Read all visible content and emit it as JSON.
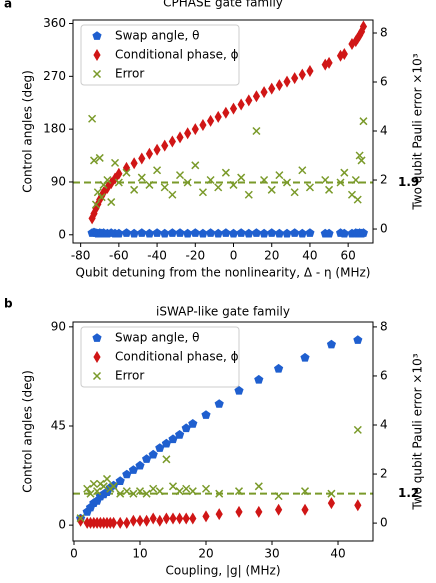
{
  "chart_data": [
    {
      "type": "scatter",
      "panel": "a",
      "title": "CPHASE gate family",
      "xlabel": "Qubit detuning from the nonlinearity, Δ - η (MHz)",
      "ylabel": "Control angles (deg)",
      "y2label": "Two qubit Pauli error ×10³",
      "x": [
        -74,
        -73,
        -72,
        -71,
        -70,
        -69,
        -68,
        -66,
        -64,
        -62,
        -60,
        -56,
        -52,
        -48,
        -44,
        -40,
        -36,
        -32,
        -28,
        -24,
        -20,
        -16,
        -12,
        -8,
        -4,
        0,
        4,
        8,
        12,
        16,
        20,
        24,
        28,
        32,
        36,
        40,
        48,
        50,
        56,
        58,
        62,
        64,
        65,
        66,
        67,
        68
      ],
      "series": [
        {
          "name": "Swap angle, θ",
          "color": "#1f5fcf",
          "marker": "pentagon",
          "values": [
            3,
            4,
            3,
            2,
            3,
            2,
            3,
            2,
            3,
            2,
            2,
            3,
            2,
            3,
            2,
            3,
            2,
            3,
            3,
            2,
            3,
            2,
            3,
            2,
            3,
            2,
            3,
            2,
            3,
            2,
            3,
            2,
            2,
            3,
            2,
            3,
            2,
            2,
            3,
            2,
            2,
            3,
            2,
            3,
            2,
            3
          ]
        },
        {
          "name": "Conditional phase, ϕ",
          "color": "#d01616",
          "marker": "diamond",
          "values": [
            28,
            36,
            45,
            52,
            60,
            66,
            72,
            80,
            88,
            96,
            104,
            114,
            122,
            130,
            138,
            145,
            152,
            159,
            166,
            173,
            180,
            187,
            194,
            201,
            208,
            215,
            222,
            229,
            236,
            243,
            249,
            255,
            261,
            267,
            273,
            279,
            290,
            293,
            305,
            308,
            325,
            330,
            335,
            340,
            346,
            355
          ]
        },
        {
          "name": "Error",
          "color": "#7a9a2a",
          "marker": "x",
          "axis": "y2",
          "values": [
            4.5,
            2.8,
            1.0,
            1.5,
            2.9,
            1.3,
            1.8,
            2.0,
            1.1,
            2.7,
            1.9,
            2.3,
            1.6,
            2.1,
            1.8,
            2.4,
            1.7,
            1.4,
            2.2,
            1.9,
            2.6,
            1.5,
            2.0,
            1.7,
            2.3,
            1.8,
            2.1,
            1.4,
            4.0,
            2.0,
            1.6,
            2.2,
            1.9,
            1.5,
            2.4,
            1.7,
            2.0,
            1.6,
            1.9,
            2.3,
            1.4,
            2.0,
            1.2,
            3.0,
            2.8,
            4.4
          ]
        }
      ],
      "threshold": 1.9,
      "xlim": [
        -84,
        73
      ],
      "ylim": [
        -14,
        366
      ],
      "y2lim": [
        -0.57,
        8.53
      ],
      "xticks": [
        -80,
        -60,
        -40,
        -20,
        0,
        20,
        40,
        60
      ],
      "yticks": [
        0,
        90,
        180,
        270,
        360
      ],
      "y2ticks": [
        0,
        2,
        4,
        6,
        8
      ],
      "legend": "upper left"
    },
    {
      "type": "scatter",
      "panel": "b",
      "title": "iSWAP-like gate family",
      "xlabel": "Coupling, |g| (MHz)",
      "ylabel": "Control angles (deg)",
      "y2label": "Two qubit Pauli error ×10³",
      "x": [
        1,
        2,
        2.5,
        3,
        3.5,
        4,
        4.5,
        5,
        5.5,
        6,
        7,
        8,
        9,
        10,
        11,
        12,
        13,
        14,
        15,
        16,
        17,
        18,
        20,
        22,
        25,
        28,
        31,
        35,
        39,
        43
      ],
      "series": [
        {
          "name": "Swap angle, θ",
          "color": "#1f5fcf",
          "marker": "pentagon",
          "values": [
            3,
            6,
            8,
            10,
            11,
            13,
            14,
            15,
            17,
            18,
            20,
            23,
            25,
            27,
            30,
            32,
            35,
            37,
            39,
            41,
            44,
            46,
            50,
            55,
            61,
            66,
            71,
            76,
            82,
            84
          ]
        },
        {
          "name": "Conditional phase, ϕ",
          "color": "#d01616",
          "marker": "diamond",
          "values": [
            2,
            1,
            1,
            1,
            1,
            1,
            1,
            1,
            1,
            1,
            1,
            1,
            2,
            2,
            2,
            3,
            2,
            3,
            3,
            3,
            3,
            3,
            4,
            5,
            6,
            6,
            7,
            7,
            10,
            9
          ]
        },
        {
          "name": "Error",
          "color": "#7a9a2a",
          "marker": "x",
          "axis": "y2",
          "values": [
            0.2,
            1.4,
            1.2,
            1.6,
            1.3,
            1.6,
            1.5,
            1.8,
            1.4,
            1.5,
            1.2,
            1.3,
            1.2,
            1.3,
            1.2,
            1.4,
            1.3,
            2.6,
            1.5,
            1.3,
            1.4,
            1.3,
            1.4,
            1.2,
            1.3,
            1.5,
            1.1,
            1.3,
            1.2,
            3.8
          ]
        }
      ],
      "threshold": 1.2,
      "xlim": [
        -0.15,
        45.3
      ],
      "ylim": [
        -7.2,
        92.2
      ],
      "y2lim": [
        -0.73,
        8.2
      ],
      "xticks": [
        0,
        10,
        20,
        30,
        40
      ],
      "yticks": [
        0,
        45,
        90
      ],
      "y2ticks": [
        0,
        2,
        4,
        6,
        8
      ],
      "legend": "upper left"
    }
  ]
}
